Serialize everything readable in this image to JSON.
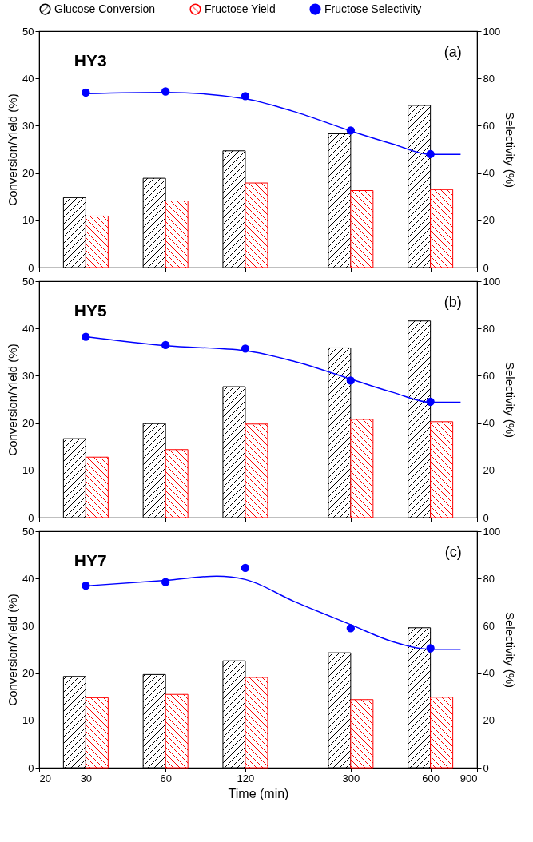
{
  "chart_data": [
    {
      "type": "bar",
      "ylabel": "Conversion/Yield (%)",
      "y2label": "Selectivity (%)",
      "log": "x",
      "xlim": [
        20,
        900
      ],
      "xticks": [
        20,
        30,
        60,
        120,
        300,
        600,
        900
      ],
      "ylim": [
        0,
        50
      ],
      "yticks": [
        0,
        10,
        20,
        30,
        40,
        50
      ],
      "y2lim": [
        0,
        100
      ],
      "y2ticks": [
        0,
        20,
        40,
        60,
        80,
        100
      ],
      "tick_labels": "y",
      "legend": "top",
      "annotations": [
        "HY3",
        "(a)"
      ],
      "x": [
        30,
        60,
        120,
        300,
        600
      ],
      "series": [
        {
          "name": "Glucose Conversion",
          "color": "#000000",
          "values": [
            14.8,
            18.9,
            24.7,
            28.3,
            34.3
          ]
        },
        {
          "name": "Fructose Yield",
          "color": "#ff0000",
          "values": [
            10.9,
            14.1,
            17.9,
            16.3,
            16.5
          ]
        },
        {
          "name": "Fructose Selectivity",
          "type": "scatter",
          "marker": "circle",
          "axis": "y2",
          "color": "#0000ff",
          "values": [
            74,
            74.5,
            72.5,
            58,
            48
          ]
        },
        {
          "type": "line",
          "axis": "y2",
          "color": "#0000ff",
          "x": [
            30,
            60,
            120,
            182,
            300,
            432,
            600,
            780
          ],
          "values": [
            73.6,
            74.1,
            71.4,
            66.1,
            57.8,
            52.3,
            47.9,
            47.9
          ]
        }
      ]
    },
    {
      "type": "bar",
      "ylabel": "Conversion/Yield (%)",
      "y2label": "Selectivity (%)",
      "log": "x",
      "xlim": [
        20,
        900
      ],
      "xticks": [
        20,
        30,
        60,
        120,
        300,
        600,
        900
      ],
      "ylim": [
        0,
        50
      ],
      "yticks": [
        0,
        10,
        20,
        30,
        40,
        50
      ],
      "y2lim": [
        0,
        100
      ],
      "y2ticks": [
        0,
        20,
        40,
        60,
        80,
        100
      ],
      "tick_labels": "y",
      "annotations": [
        "HY5",
        "(b)"
      ],
      "x": [
        30,
        60,
        120,
        300,
        600
      ],
      "series": [
        {
          "color": "#000000",
          "values": [
            16.7,
            19.9,
            27.7,
            35.9,
            41.6
          ]
        },
        {
          "color": "#ff0000",
          "values": [
            12.8,
            14.4,
            19.8,
            20.8,
            20.3
          ]
        },
        {
          "type": "scatter",
          "marker": "circle",
          "axis": "y2",
          "color": "#0000ff",
          "values": [
            76.5,
            73,
            71.5,
            58,
            49
          ]
        },
        {
          "type": "line",
          "axis": "y2",
          "color": "#0000ff",
          "x": [
            30,
            60,
            120,
            182,
            300,
            432,
            600,
            780
          ],
          "values": [
            76.5,
            72.7,
            70.6,
            66.2,
            58.6,
            53,
            48.8,
            48.8
          ]
        }
      ]
    },
    {
      "type": "bar",
      "xlabel": "Time (min)",
      "ylabel": "Conversion/Yield (%)",
      "y2label": "Selectivity (%)",
      "log": "x",
      "xlim": [
        20,
        900
      ],
      "xticks": [
        20,
        30,
        60,
        120,
        300,
        600,
        900
      ],
      "ylim": [
        0,
        50
      ],
      "yticks": [
        0,
        10,
        20,
        30,
        40,
        50
      ],
      "y2lim": [
        0,
        100
      ],
      "y2ticks": [
        0,
        20,
        40,
        60,
        80,
        100
      ],
      "annotations": [
        "HY7",
        "(c)"
      ],
      "x": [
        30,
        60,
        120,
        300,
        600
      ],
      "series": [
        {
          "color": "#000000",
          "values": [
            19.3,
            19.7,
            22.6,
            24.3,
            29.6
          ]
        },
        {
          "color": "#ff0000",
          "values": [
            14.8,
            15.5,
            19.1,
            14.4,
            14.9
          ]
        },
        {
          "type": "scatter",
          "marker": "circle",
          "axis": "y2",
          "color": "#0000ff",
          "values": [
            77,
            78.5,
            84.5,
            59,
            50.5
          ]
        },
        {
          "type": "line",
          "axis": "y2",
          "color": "#0000ff",
          "x": [
            30,
            60,
            93.6,
            120,
            182,
            300,
            432,
            600,
            780
          ],
          "values": [
            76.9,
            79.2,
            81,
            79.6,
            70.5,
            60.5,
            53.3,
            50.1,
            50.1
          ]
        }
      ]
    }
  ]
}
